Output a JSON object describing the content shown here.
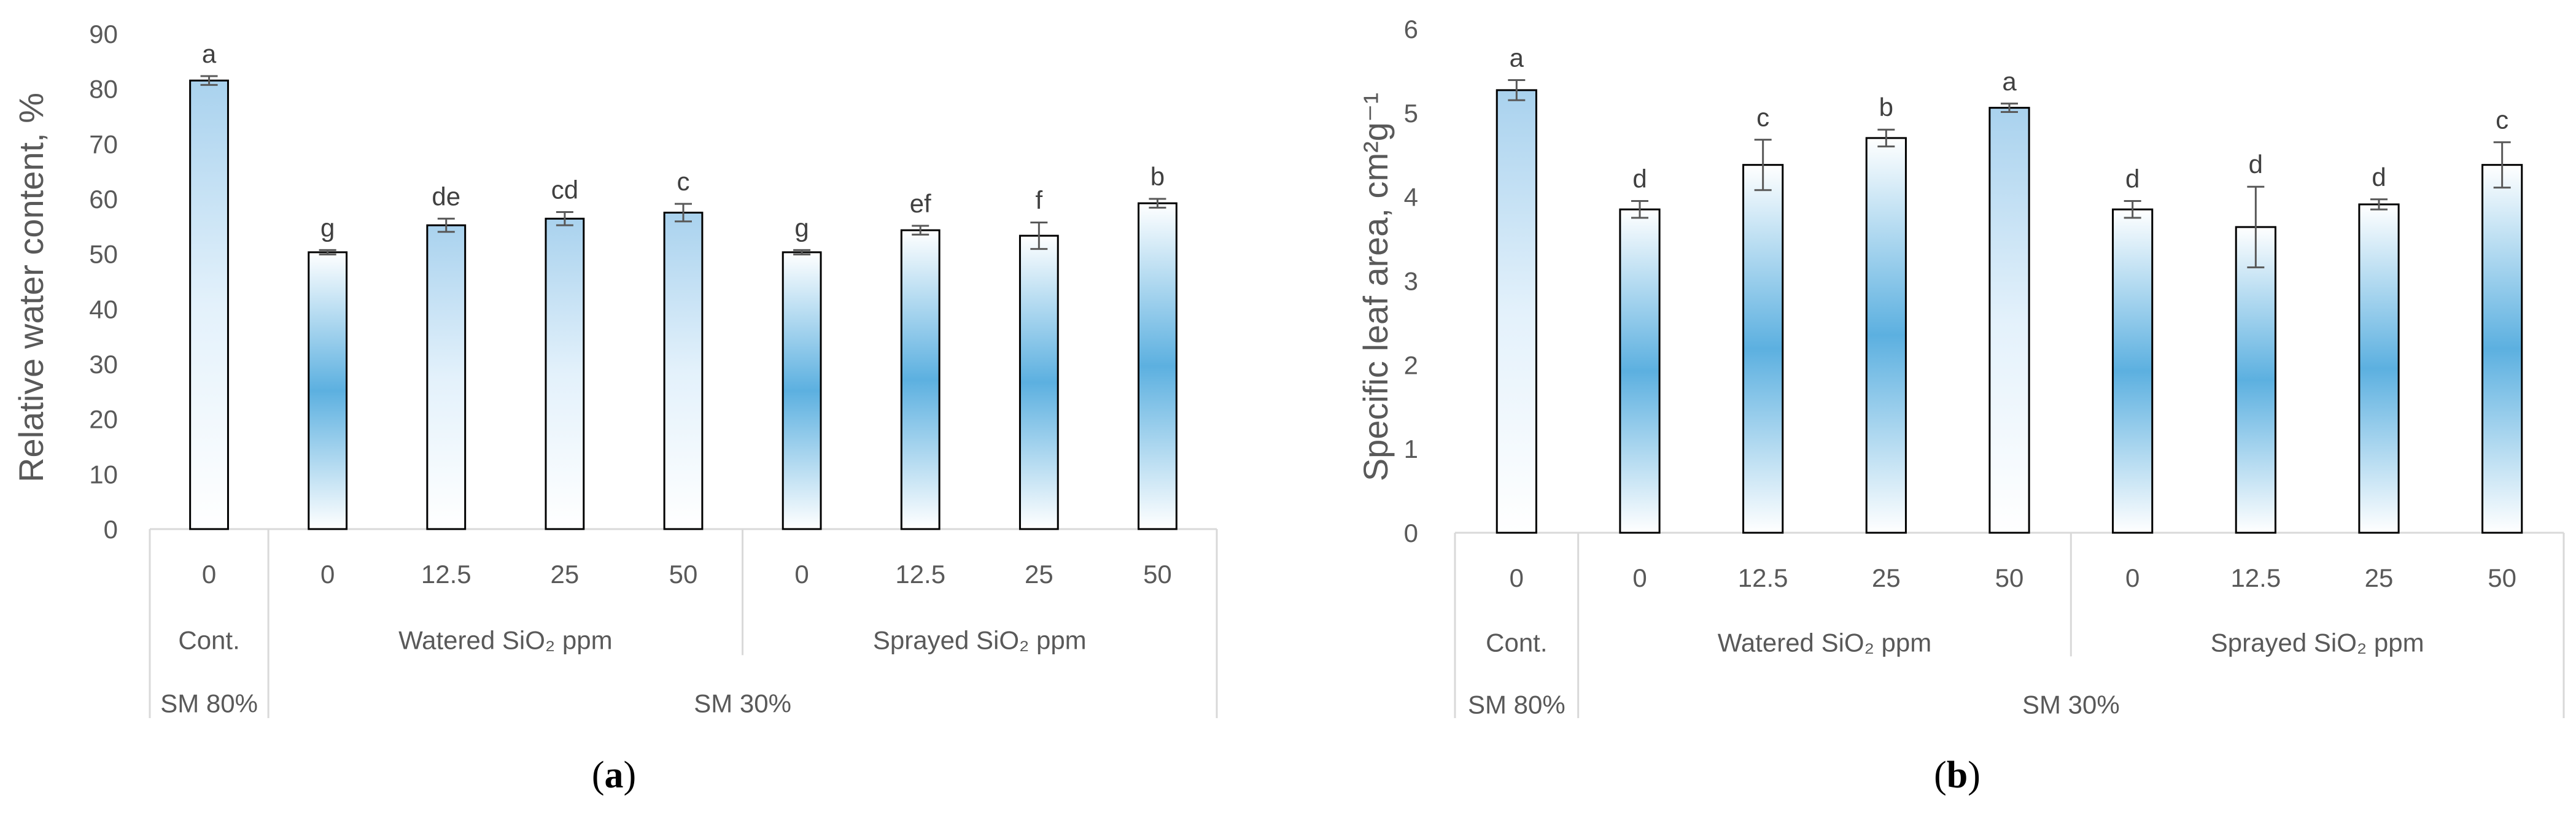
{
  "chart_data": [
    {
      "type": "bar",
      "panel_label": "a",
      "ylabel": "Relative water content, %",
      "ylim": [
        0,
        90
      ],
      "yticks": [
        0,
        10,
        20,
        30,
        40,
        50,
        60,
        70,
        80,
        90
      ],
      "categories": [
        "0",
        "0",
        "12.5",
        "25",
        "50",
        "0",
        "12.5",
        "25",
        "50"
      ],
      "group_labels": [
        "Cont.",
        "Watered SiO₂ ppm",
        "Sprayed SiO₂ ppm"
      ],
      "group_spans": [
        1,
        4,
        4
      ],
      "level2_labels": [
        "SM 80%",
        "SM 30%"
      ],
      "level2_spans": [
        1,
        8
      ],
      "values": [
        81.5,
        50.3,
        55.2,
        56.4,
        57.5,
        50.3,
        54.3,
        53.3,
        59.2
      ],
      "errors": [
        0.8,
        0.4,
        1.2,
        1.2,
        1.6,
        0.4,
        0.8,
        2.4,
        0.8
      ],
      "significance": [
        "a",
        "g",
        "de",
        "cd",
        "c",
        "g",
        "ef",
        "f",
        "b"
      ],
      "fill_style": [
        "light",
        "dark",
        "light",
        "light",
        "light",
        "dark",
        "dark",
        "dark",
        "dark"
      ]
    },
    {
      "type": "bar",
      "panel_label": "b",
      "ylabel": "Specific leaf area, cm²g⁻¹",
      "ylim": [
        0,
        6
      ],
      "yticks": [
        0,
        1,
        2,
        3,
        4,
        5,
        6
      ],
      "categories": [
        "0",
        "0",
        "12.5",
        "25",
        "50",
        "0",
        "12.5",
        "25",
        "50"
      ],
      "group_labels": [
        "Cont.",
        "Watered SiO₂ ppm",
        "Sprayed SiO₂ ppm"
      ],
      "group_spans": [
        1,
        4,
        4
      ],
      "level2_labels": [
        "SM 80%",
        "SM 30%"
      ],
      "level2_spans": [
        1,
        8
      ],
      "values": [
        5.27,
        3.85,
        4.38,
        4.7,
        5.06,
        3.85,
        3.64,
        3.91,
        4.38
      ],
      "errors": [
        0.12,
        0.1,
        0.3,
        0.1,
        0.05,
        0.1,
        0.48,
        0.06,
        0.27
      ],
      "significance": [
        "a",
        "d",
        "c",
        "b",
        "a",
        "d",
        "d",
        "d",
        "c"
      ],
      "fill_style": [
        "light",
        "dark",
        "dark",
        "dark",
        "light",
        "dark",
        "dark",
        "dark",
        "dark"
      ]
    }
  ]
}
